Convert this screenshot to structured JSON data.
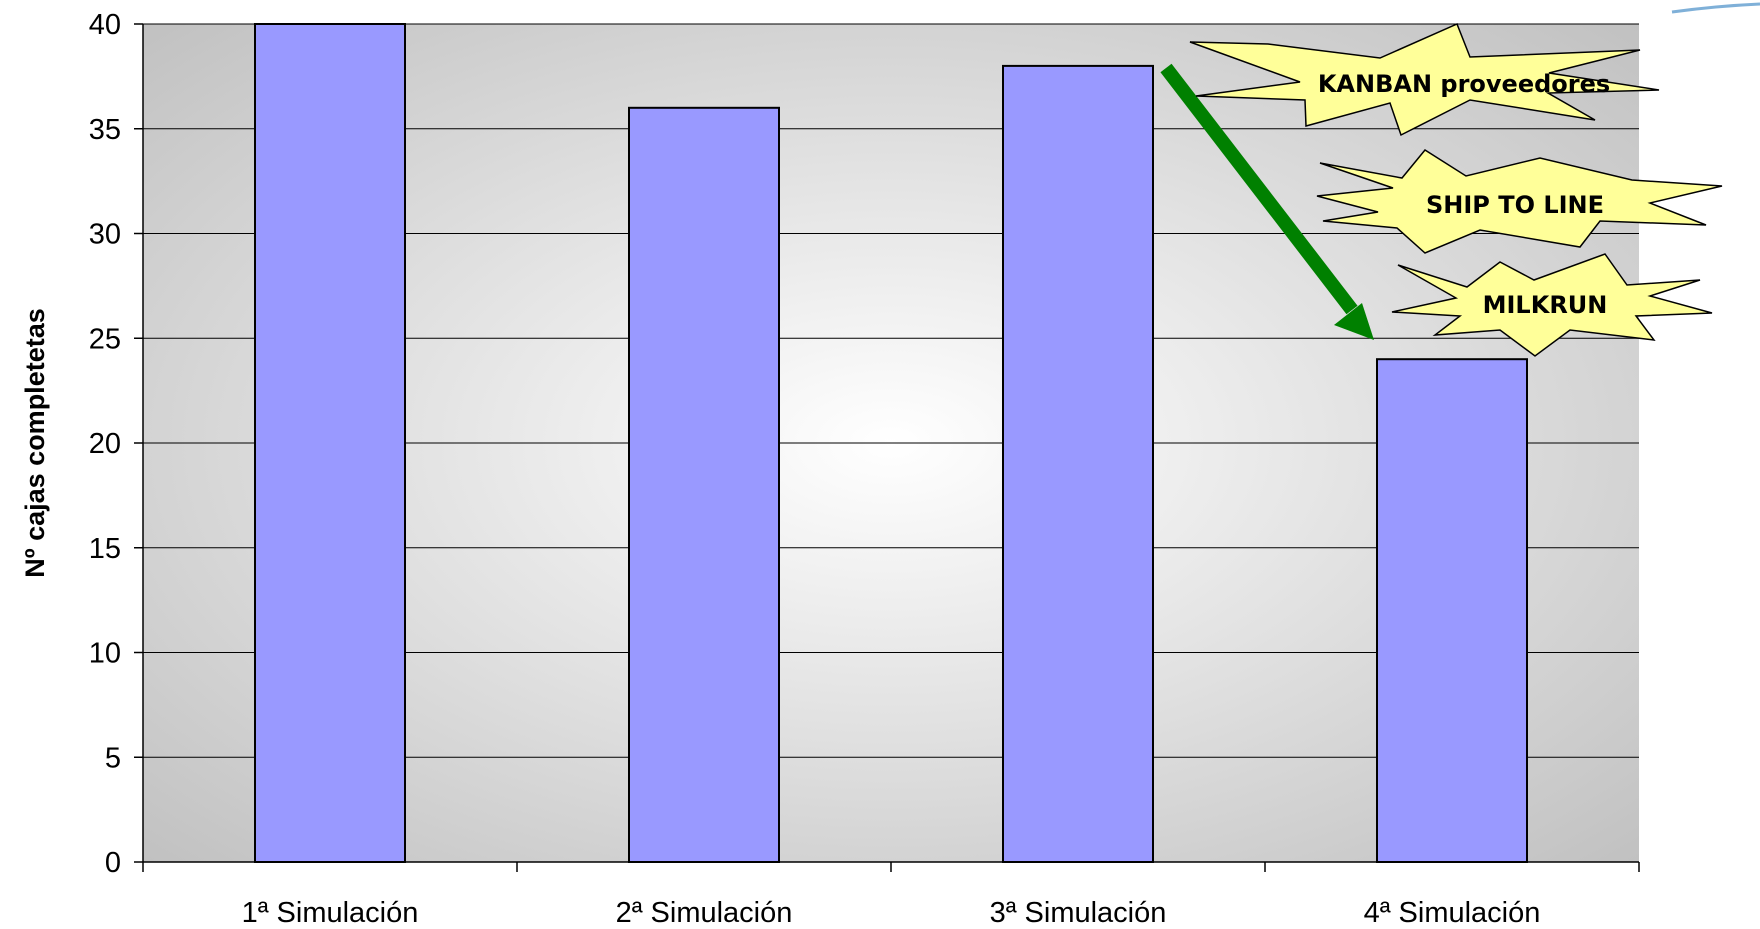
{
  "chart_data": {
    "type": "bar",
    "categories": [
      "1ª Simulación",
      "2ª Simulación",
      "3ª Simulación",
      "4ª Simulación"
    ],
    "values": [
      40,
      36,
      38,
      24
    ],
    "title": "",
    "xlabel": "",
    "ylabel": "Nº cajas completetas",
    "ylim": [
      0,
      40
    ],
    "yticks": [
      0,
      5,
      10,
      15,
      20,
      25,
      30,
      35,
      40
    ],
    "grid": true,
    "legend": "none",
    "annotations": [
      "KANBAN proveedores",
      "SHIP TO LINE",
      "MILKRUN"
    ],
    "colors": {
      "bar": "#9999FF",
      "bar_outline": "#000000",
      "plot_bg_edge": "#BDBDBD",
      "plot_bg_center": "#FFFFFF",
      "arrow": "#008000",
      "burst_fill": "#FFFF99"
    }
  }
}
